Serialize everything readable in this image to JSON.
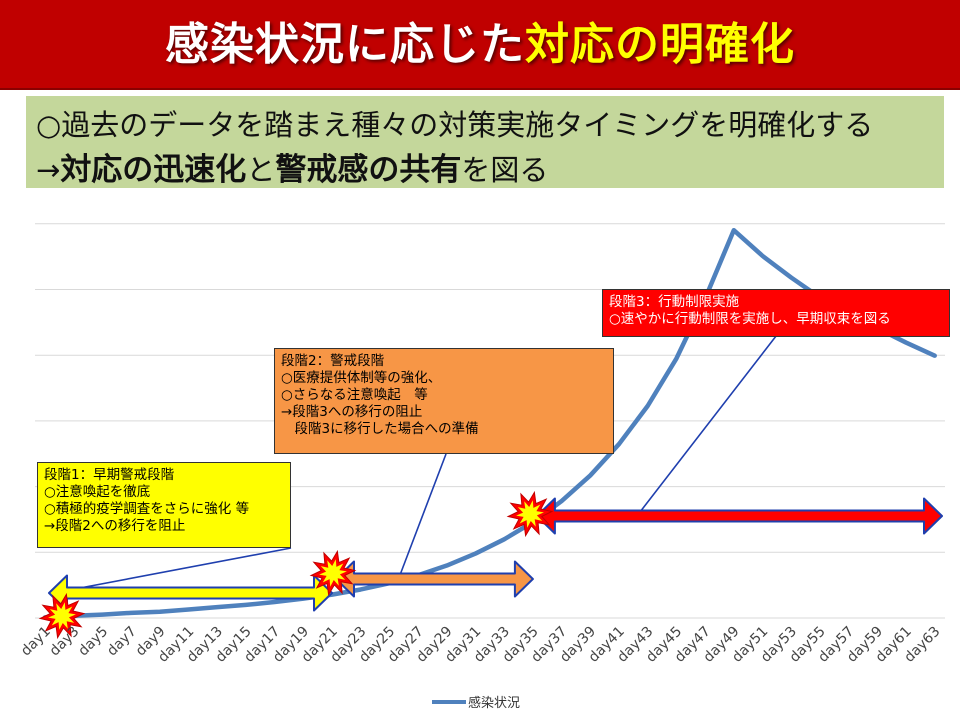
{
  "title": {
    "part1": "感染状況に応じた",
    "part2": "対応の明確化"
  },
  "summary": {
    "line1": "○過去のデータを踏まえ種々の対策実施タイミングを明確化する",
    "line2_prefix": "→",
    "line2_bold1": "対応の迅速化",
    "line2_mid": "と",
    "line2_bold2": "警戒感の共有",
    "line2_suffix": "を図る"
  },
  "annotations": {
    "stage1": [
      "段階1：早期警戒段階",
      "○注意喚起を徹底",
      "○積極的疫学調査をさらに強化 等",
      "→段階2への移行を阻止"
    ],
    "stage2": [
      "段階2：警戒段階",
      "○医療提供体制等の強化、",
      "○さらなる注意喚起　等",
      "→段階3への移行の阻止",
      "　段階3に移行した場合への準備"
    ],
    "stage3": [
      "段階3：行動制限実施",
      "○速やかに行動制限を実施し、早期収束を図る"
    ]
  },
  "colors": {
    "header": "#c00000",
    "summary_bg": "#c4d79b",
    "series": "#4f81bd",
    "stage1": "#ffff00",
    "stage2": "#f79646",
    "stage3": "#ff0000",
    "arrow_outline": "#1f3fae"
  },
  "chart_data": {
    "type": "line",
    "categories": [
      "day1",
      "day3",
      "day5",
      "day7",
      "day9",
      "day11",
      "day13",
      "day15",
      "day17",
      "day19",
      "day21",
      "day23",
      "day25",
      "day27",
      "day29",
      "day31",
      "day33",
      "day35",
      "day37",
      "day39",
      "day41",
      "day43",
      "day45",
      "day47",
      "day49",
      "day51",
      "day53",
      "day55",
      "day57",
      "day59",
      "day61",
      "day63"
    ],
    "series": [
      {
        "name": "感染状況",
        "values": [
          1,
          4,
          6,
          9,
          11,
          15,
          19,
          23,
          28,
          34,
          41,
          50,
          61,
          75,
          92,
          113,
          138,
          168,
          205,
          250,
          305,
          372,
          455,
          560,
          680,
          635,
          597,
          562,
          535,
          508,
          483,
          460
        ]
      }
    ],
    "ylim": [
      0,
      740
    ],
    "grid": true,
    "legend": "bottom",
    "stage_arrows": [
      {
        "stage": 1,
        "from": "day1",
        "to": "day21"
      },
      {
        "stage": 2,
        "from": "day21",
        "to": "day35"
      },
      {
        "stage": 3,
        "from": "day35",
        "to": "day63"
      }
    ]
  }
}
